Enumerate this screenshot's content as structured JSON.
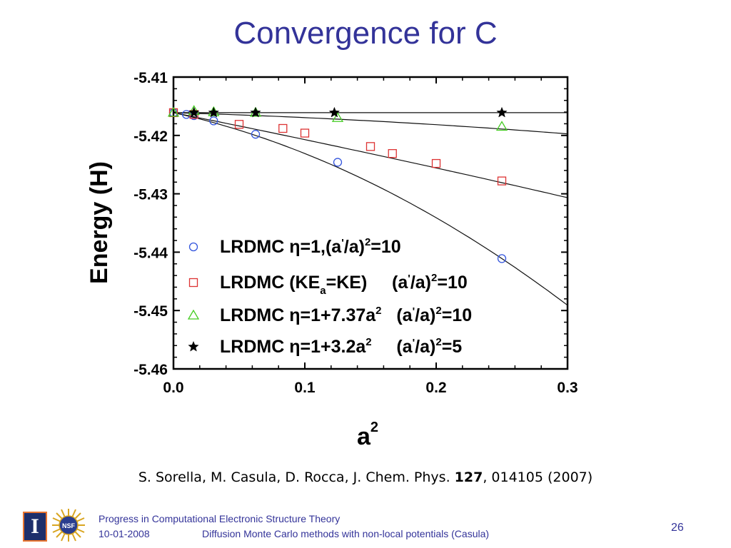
{
  "slide": {
    "title": "Convergence for C",
    "citation_pre": "S. Sorella, M. Casula, D. Rocca, J. Chem. Phys. ",
    "citation_bold": "127",
    "citation_post": ", 014105 (2007)",
    "page_number": "26"
  },
  "footer": {
    "course": "Progress in Computational Electronic Structure Theory",
    "date": "10-01-2008",
    "subtitle": "Diffusion Monte Carlo methods with non-local potentials  (Casula)",
    "logo_letter": "I",
    "logo_nsf": "NSF"
  },
  "chart_data": {
    "type": "scatter",
    "xlabel": "a",
    "xlabel_sup": "2",
    "ylabel": "Energy (H)",
    "xlim": [
      0.0,
      0.3
    ],
    "ylim": [
      -5.46,
      -5.41
    ],
    "xticks": [
      0.0,
      0.1,
      0.2,
      0.3
    ],
    "xtick_labels": [
      "0.0",
      "0.1",
      "0.2",
      "0.3"
    ],
    "yticks": [
      -5.41,
      -5.42,
      -5.43,
      -5.44,
      -5.45,
      -5.46
    ],
    "ytick_labels": [
      "-5.41",
      "-5.42",
      "-5.43",
      "-5.44",
      "-5.45",
      "-5.46"
    ],
    "legend_position": "bottom-left",
    "series": [
      {
        "legend": [
          {
            "t": "LRDMC ",
            "y": 0
          },
          {
            "t": "η",
            "y": 0
          },
          {
            "t": "=1,(a",
            "y": 0
          },
          {
            "t": "'",
            "y": -9,
            "small": true
          },
          {
            "t": "/a)",
            "y": 0
          },
          {
            "t": "2",
            "y": -10,
            "small": true
          },
          {
            "t": "=10",
            "y": 0
          }
        ],
        "marker": "circle",
        "color": "#3355dd",
        "x": [
          0.0,
          0.0098,
          0.0156,
          0.0306,
          0.0625,
          0.125,
          0.25
        ],
        "y": [
          -5.4161,
          -5.4164,
          -5.4166,
          -5.4175,
          -5.4198,
          -5.4246,
          -5.4411
        ],
        "fit": {
          "c0": -5.4161,
          "c1": -0.05,
          "c2": -0.2
        }
      },
      {
        "legend": [
          {
            "t": "LRDMC (KE",
            "y": 0
          },
          {
            "t": "a",
            "y": 8,
            "small": true
          },
          {
            "t": "=KE)     (a",
            "y": 0
          },
          {
            "t": "'",
            "y": -9,
            "small": true
          },
          {
            "t": "/a)",
            "y": 0
          },
          {
            "t": "2",
            "y": -10,
            "small": true
          },
          {
            "t": "=10",
            "y": 0
          }
        ],
        "marker": "square",
        "color": "#dd3333",
        "x": [
          0.0,
          0.0156,
          0.05,
          0.0833,
          0.1,
          0.15,
          0.1667,
          0.2,
          0.25
        ],
        "y": [
          -5.4161,
          -5.4164,
          -5.4181,
          -5.4188,
          -5.4196,
          -5.4219,
          -5.4231,
          -5.4248,
          -5.4278
        ],
        "fit": {
          "c0": -5.4161,
          "c1": -0.045,
          "c2": -0.0118
        }
      },
      {
        "legend": [
          {
            "t": "LRDMC ",
            "y": 0
          },
          {
            "t": "η",
            "y": 0
          },
          {
            "t": "=1+7.37a",
            "y": 0
          },
          {
            "t": "2",
            "y": -10,
            "small": true
          },
          {
            "t": "   (a",
            "y": 0
          },
          {
            "t": "'",
            "y": -9,
            "small": true
          },
          {
            "t": "/a)",
            "y": 0
          },
          {
            "t": "2",
            "y": -10,
            "small": true
          },
          {
            "t": "=10",
            "y": 0
          }
        ],
        "marker": "triangle",
        "color": "#44cc22",
        "x": [
          0.0,
          0.0156,
          0.0306,
          0.0625,
          0.125,
          0.25
        ],
        "y": [
          -5.4161,
          -5.4158,
          -5.416,
          -5.4161,
          -5.417,
          -5.4185
        ],
        "fit": {
          "c0": -5.4161,
          "c1": -0.0067,
          "c2": -0.018
        }
      },
      {
        "legend": [
          {
            "t": "LRDMC ",
            "y": 0
          },
          {
            "t": "η",
            "y": 0
          },
          {
            "t": "=1+3.2a",
            "y": 0
          },
          {
            "t": "2",
            "y": -10,
            "small": true
          },
          {
            "t": "     (a",
            "y": 0
          },
          {
            "t": "'",
            "y": -9,
            "small": true
          },
          {
            "t": "/a)",
            "y": 0
          },
          {
            "t": "2",
            "y": -10,
            "small": true
          },
          {
            "t": "=5",
            "y": 0
          }
        ],
        "marker": "star",
        "color": "#000000",
        "x": [
          0.0156,
          0.0306,
          0.0625,
          0.1225,
          0.25
        ],
        "y": [
          -5.4161,
          -5.4161,
          -5.4161,
          -5.4161,
          -5.4161
        ],
        "fit": {
          "c0": -5.4161,
          "c1": 0.0,
          "c2": 0.0
        }
      }
    ]
  }
}
